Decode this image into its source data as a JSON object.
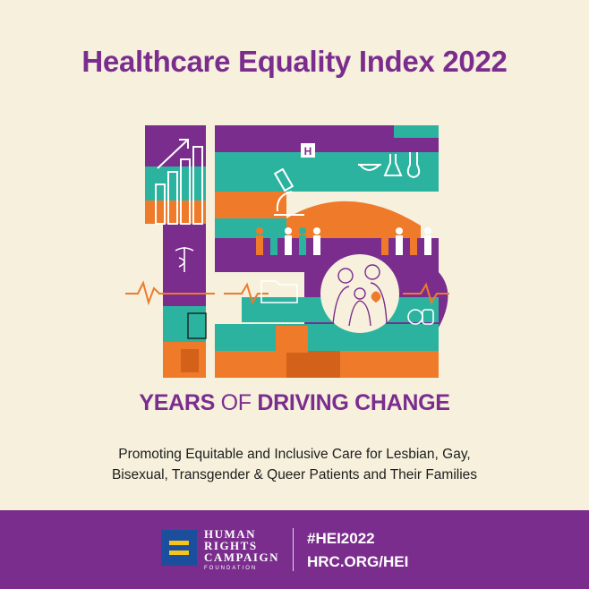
{
  "title": "Healthcare Equality Index 2022",
  "tagline": {
    "years": "YEARS",
    "of": "OF",
    "driving": "DRIVING CHANGE"
  },
  "subtitle": {
    "line1": "Promoting Equitable and Inclusive Care for Lesbian, Gay,",
    "line2": "Bisexual, Transgender & Queer Patients and Their Families"
  },
  "footer": {
    "logo": {
      "line1": "HUMAN",
      "line2": "RIGHTS",
      "line3": "CAMPAIGN",
      "line4": "FOUNDATION"
    },
    "hashtag": "#HEI2022",
    "url": "HRC.ORG/HEI"
  },
  "artwork": {
    "hospital_letter": "H"
  },
  "colors": {
    "purple": "#7b2d8e",
    "teal": "#2bb3a0",
    "orange": "#ee7a2a",
    "cream": "#f6f0dc",
    "blue": "#1b4f9e",
    "yellow": "#f5c518"
  }
}
